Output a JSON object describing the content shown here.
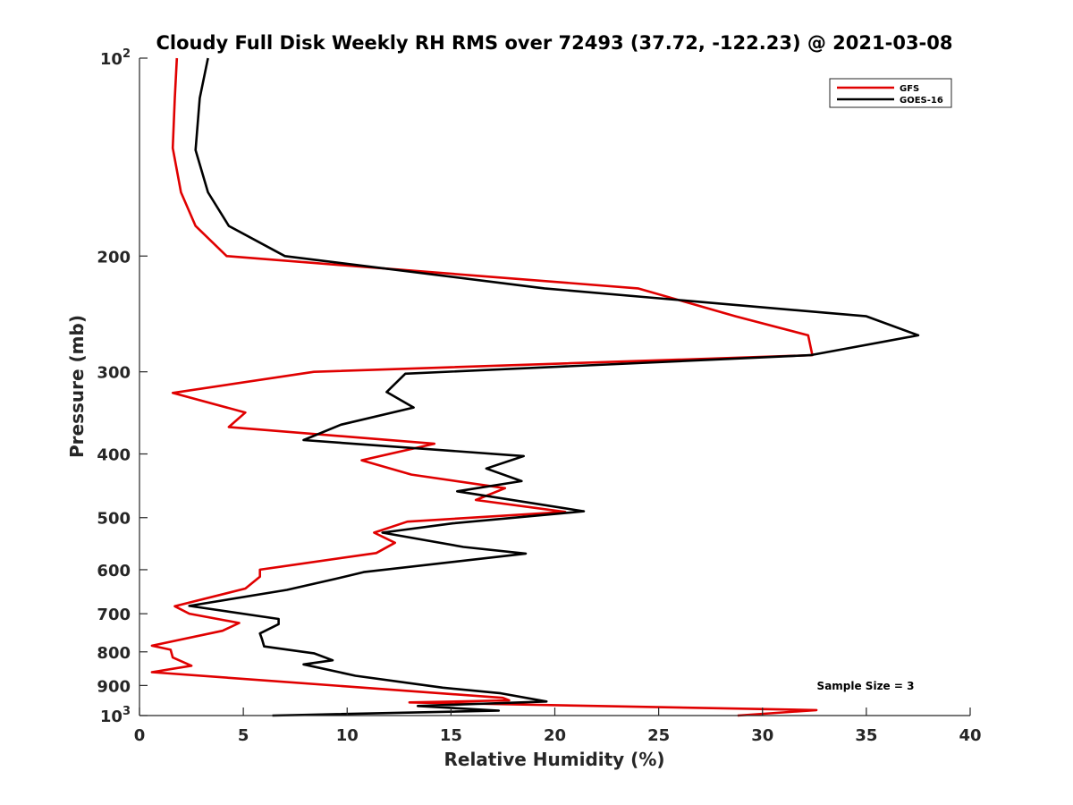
{
  "chart_data": {
    "type": "line",
    "title": "Cloudy Full Disk Weekly RH RMS over 72493 (37.72, -122.23) @ 2021-03-08",
    "xlabel": "Relative Humidity (%)",
    "ylabel": "Pressure (mb)",
    "xlim": [
      0,
      40
    ],
    "ylim": [
      100,
      1000
    ],
    "y_scale": "log",
    "y_reversed": true,
    "x_ticks": [
      0,
      5,
      10,
      15,
      20,
      25,
      30,
      35,
      40
    ],
    "y_ticks": [
      {
        "value": 100,
        "label": "10",
        "sup": "2"
      },
      {
        "value": 200,
        "label": "200",
        "sup": ""
      },
      {
        "value": 300,
        "label": "300",
        "sup": ""
      },
      {
        "value": 400,
        "label": "400",
        "sup": ""
      },
      {
        "value": 500,
        "label": "500",
        "sup": ""
      },
      {
        "value": 600,
        "label": "600",
        "sup": ""
      },
      {
        "value": 700,
        "label": "700",
        "sup": ""
      },
      {
        "value": 800,
        "label": "800",
        "sup": ""
      },
      {
        "value": 900,
        "label": "900",
        "sup": ""
      },
      {
        "value": 1000,
        "label": "10",
        "sup": "3"
      }
    ],
    "grid": false,
    "legend_position": "top-right",
    "annotation": "Sample Size = 3",
    "series": [
      {
        "name": "GFS",
        "color": "#e00000",
        "points": [
          [
            1.8,
            100
          ],
          [
            1.7,
            115
          ],
          [
            1.6,
            137
          ],
          [
            2.0,
            160
          ],
          [
            2.7,
            180
          ],
          [
            4.2,
            200
          ],
          [
            24.0,
            224
          ],
          [
            28.7,
            247
          ],
          [
            32.2,
            264
          ],
          [
            32.4,
            283
          ],
          [
            8.4,
            300
          ],
          [
            1.6,
            323
          ],
          [
            5.1,
            346
          ],
          [
            4.3,
            364
          ],
          [
            14.2,
            386
          ],
          [
            10.7,
            409
          ],
          [
            13.1,
            430
          ],
          [
            17.6,
            451
          ],
          [
            16.2,
            470
          ],
          [
            20.5,
            490
          ],
          [
            12.9,
            507
          ],
          [
            11.3,
            527
          ],
          [
            12.3,
            546
          ],
          [
            11.4,
            566
          ],
          [
            5.8,
            600
          ],
          [
            5.8,
            615
          ],
          [
            5.1,
            641
          ],
          [
            1.7,
            682
          ],
          [
            2.4,
            700
          ],
          [
            4.8,
            723
          ],
          [
            4.0,
            743
          ],
          [
            0.6,
            783
          ],
          [
            1.5,
            794
          ],
          [
            1.6,
            816
          ],
          [
            2.5,
            840
          ],
          [
            0.6,
            859
          ],
          [
            17.5,
            940
          ],
          [
            17.8,
            948
          ],
          [
            13.0,
            955
          ],
          [
            32.6,
            981
          ],
          [
            28.8,
            1000
          ]
        ]
      },
      {
        "name": "GOES-16",
        "color": "#000000",
        "points": [
          [
            3.3,
            100
          ],
          [
            2.9,
            115
          ],
          [
            2.7,
            138
          ],
          [
            3.3,
            160
          ],
          [
            4.3,
            180
          ],
          [
            7.0,
            200
          ],
          [
            19.5,
            224
          ],
          [
            35.0,
            247
          ],
          [
            37.5,
            264
          ],
          [
            32.3,
            283
          ],
          [
            12.8,
            302
          ],
          [
            11.9,
            322
          ],
          [
            13.2,
            340
          ],
          [
            9.7,
            361
          ],
          [
            7.9,
            381
          ],
          [
            18.5,
            403
          ],
          [
            16.7,
            421
          ],
          [
            18.4,
            440
          ],
          [
            15.3,
            456
          ],
          [
            21.4,
            489
          ],
          [
            15.1,
            510
          ],
          [
            11.7,
            527
          ],
          [
            15.6,
            554
          ],
          [
            18.6,
            567
          ],
          [
            10.8,
            605
          ],
          [
            9.4,
            620
          ],
          [
            7.1,
            644
          ],
          [
            2.4,
            681
          ],
          [
            6.7,
            713
          ],
          [
            6.7,
            726
          ],
          [
            5.8,
            750
          ],
          [
            5.9,
            765
          ],
          [
            6.0,
            785
          ],
          [
            8.4,
            804
          ],
          [
            9.3,
            824
          ],
          [
            7.9,
            836
          ],
          [
            10.4,
            870
          ],
          [
            14.6,
            907
          ],
          [
            17.4,
            925
          ],
          [
            19.6,
            952
          ],
          [
            13.4,
            967
          ],
          [
            17.3,
            983
          ],
          [
            6.4,
            1000
          ]
        ]
      }
    ]
  }
}
